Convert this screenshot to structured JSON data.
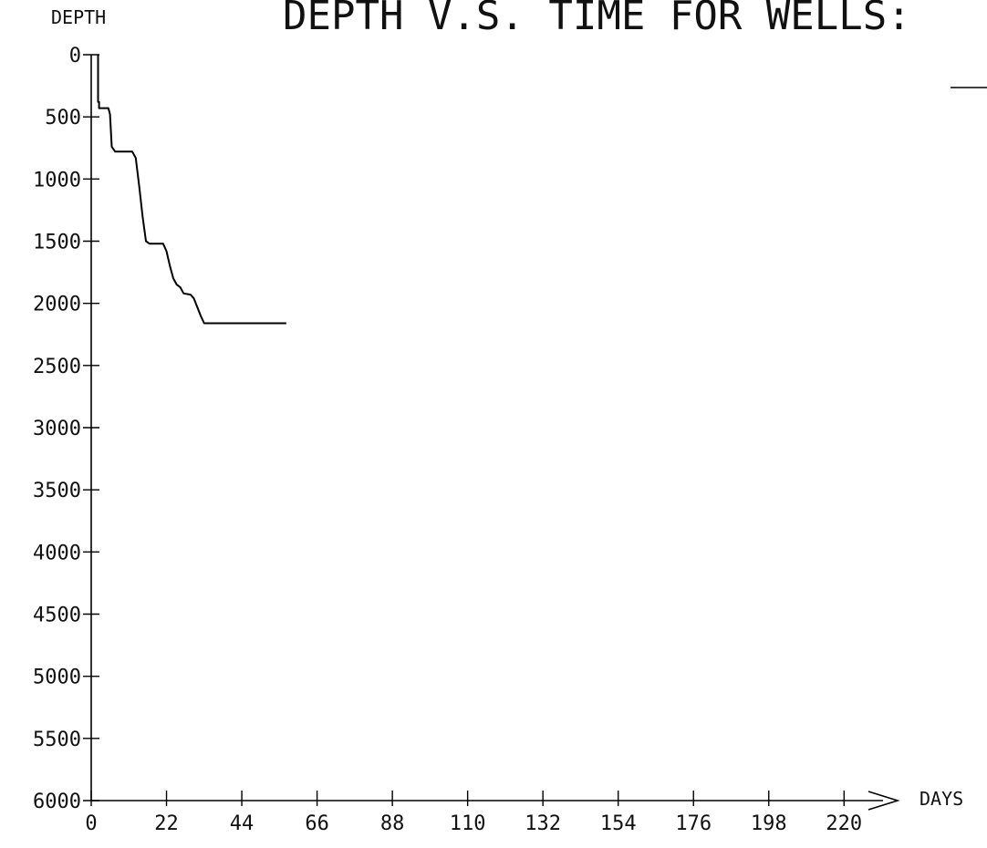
{
  "chart_data": {
    "type": "line",
    "title": "DEPTH V.S. TIME FOR WELLS:",
    "ylabel": "DEPTH",
    "xlabel": "DAYS",
    "xlim": [
      0,
      240
    ],
    "ylim": [
      0,
      6000
    ],
    "y_inverted": true,
    "grid": false,
    "x_ticks": [
      0,
      22,
      44,
      66,
      88,
      110,
      132,
      154,
      176,
      198,
      220
    ],
    "y_ticks": [
      0,
      500,
      1000,
      1500,
      2000,
      2500,
      3000,
      3500,
      4000,
      4500,
      5000,
      5500,
      6000
    ],
    "series": [
      {
        "x": [
          2,
          2,
          2.3,
          2.3,
          5,
          5.5,
          6,
          7,
          12,
          13,
          14,
          15,
          16,
          17,
          18,
          18.5,
          21,
          22,
          23,
          24,
          25,
          26,
          27,
          29,
          30,
          32,
          33,
          57
        ],
        "y": [
          0,
          380,
          380,
          430,
          430,
          480,
          740,
          780,
          780,
          830,
          1050,
          1300,
          1500,
          1520,
          1520,
          1520,
          1520,
          1580,
          1700,
          1800,
          1850,
          1870,
          1920,
          1930,
          1960,
          2100,
          2160,
          2160
        ]
      }
    ]
  }
}
